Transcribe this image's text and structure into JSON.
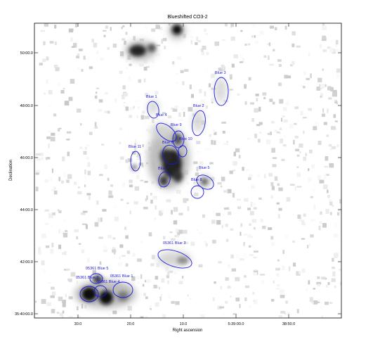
{
  "title": "Blueshifted CO3-2",
  "x_axis": {
    "label": "Right ascension",
    "ticks": [
      "30.0",
      "20.0",
      "10.0",
      "5:39:00.0",
      "38:50.0"
    ]
  },
  "y_axis": {
    "label": "Declination",
    "ticks": [
      "50:00.0",
      "48:00.0",
      "46:00.0",
      "44:00.0",
      "42:00.0",
      "35:40:00.0"
    ]
  },
  "colors": {
    "ellipse": "#1a1adc",
    "label": "#1a1adc",
    "frame": "#000000"
  },
  "regions": [
    {
      "name": "Blue 1"
    },
    {
      "name": "Blue 2"
    },
    {
      "name": "Blue 3"
    },
    {
      "name": "Blue 4"
    },
    {
      "name": "Blue 9"
    },
    {
      "name": "Blue 10"
    },
    {
      "name": "Blue 6"
    },
    {
      "name": "Blue 11"
    },
    {
      "name": "Blue 7"
    },
    {
      "name": "Blue 5"
    },
    {
      "name": "Blue 8"
    },
    {
      "name": "05361 Blue 3"
    },
    {
      "name": "05361 Blue 5"
    },
    {
      "name": "05361 Blue 1"
    },
    {
      "name": "05361 Blue 4"
    },
    {
      "name": "05361 Blue 2"
    }
  ]
}
